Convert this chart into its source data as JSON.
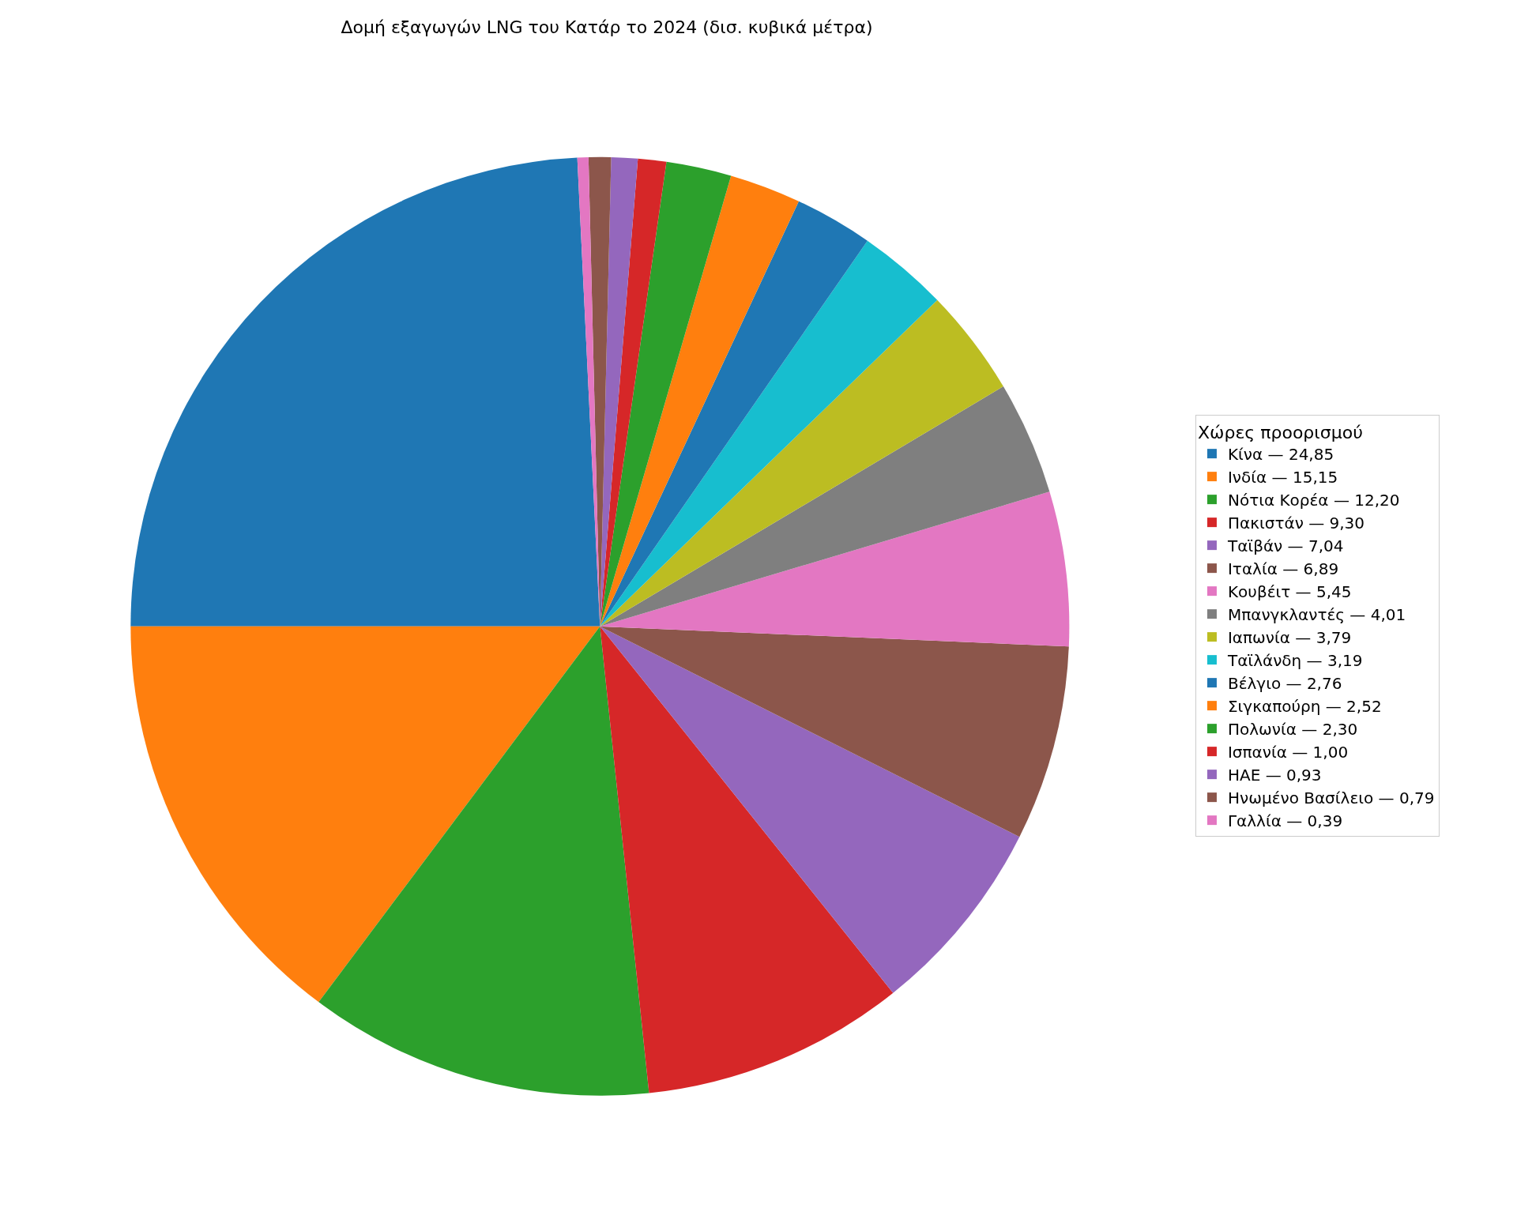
{
  "chart_data": {
    "type": "pie",
    "title": "Δομή εξαγωγών LNG του Κατάρ το 2024 (δισ. κυβικά μέτρα)",
    "legend_title": "Χώρες προορισμού",
    "legend": "right",
    "categories": [
      "Κίνα — 24,85",
      "Ινδία — 15,15",
      "Νότια Κορέα — 12,20",
      "Πακιστάν — 9,30",
      "Ταϊβάν — 7,04",
      "Ιταλία — 6,89",
      "Κουβέιτ — 5,45",
      "Μπανγκλαντές — 4,01",
      "Ιαπωνία — 3,79",
      "Ταϊλάνδη — 3,19",
      "Βέλγιο — 2,76",
      "Σιγκαπούρη — 2,52",
      "Πολωνία — 2,30",
      "Ισπανία — 1,00",
      "ΗΑΕ — 0,93",
      "Ηνωμένο Βασίλειο — 0,79",
      "Γαλλία — 0,39"
    ],
    "values": [
      24.85,
      15.15,
      12.2,
      9.3,
      7.04,
      6.89,
      5.45,
      4.01,
      3.79,
      3.19,
      2.76,
      2.52,
      2.3,
      1.0,
      0.93,
      0.79,
      0.39
    ],
    "colors": [
      "#1f77b4",
      "#ff7f0e",
      "#2ca02c",
      "#d62728",
      "#9467bd",
      "#8c564b",
      "#e377c2",
      "#7f7f7f",
      "#bcbd22",
      "#17becf",
      "#1f77b4",
      "#ff7f0e",
      "#2ca02c",
      "#d62728",
      "#9467bd",
      "#8c564b",
      "#e377c2"
    ]
  }
}
